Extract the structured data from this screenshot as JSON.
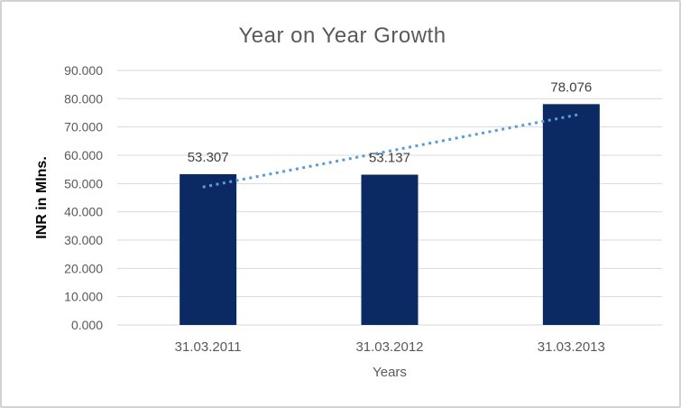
{
  "chart_data": {
    "type": "bar",
    "title": "Year on Year Growth",
    "xlabel": "Years",
    "ylabel": "INR in Mlns.",
    "categories": [
      "31.03.2011",
      "31.03.2012",
      "31.03.2013"
    ],
    "values": [
      53.307,
      53.137,
      78.076
    ],
    "data_labels": [
      "53.307",
      "53.137",
      "78.076"
    ],
    "ylim": [
      0,
      90
    ],
    "ytick_step": 10,
    "ytick_labels": [
      "0.000",
      "10.000",
      "20.000",
      "30.000",
      "40.000",
      "50.000",
      "60.000",
      "70.000",
      "80.000",
      "90.000"
    ],
    "grid": true,
    "legend": "none",
    "bar_color": "#0b2a64",
    "trendline": {
      "type": "linear",
      "style": "dotted",
      "color": "#5b9bd5"
    },
    "colors": {
      "title": "#595959",
      "tick": "#595959",
      "data_label": "#404040",
      "gridline": "#d9d9d9",
      "axis_title": "#000000",
      "border": "#d2d2d2",
      "background": "#ffffff"
    }
  }
}
